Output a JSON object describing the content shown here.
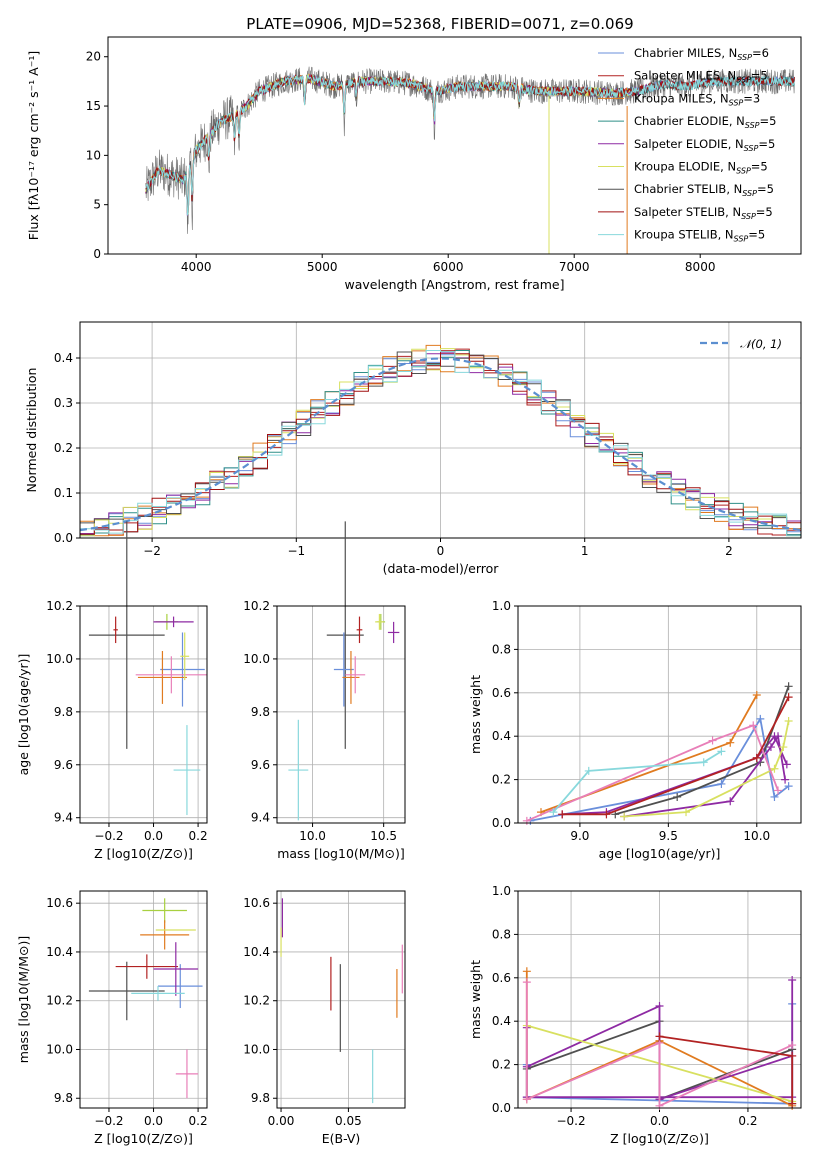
{
  "figure_title": "PLATE=0906, MJD=52368, FIBERID=0071, z=0.069",
  "chart_data": [
    {
      "type": "line",
      "id": "spectrum",
      "title": "PLATE=0906, MJD=52368, FIBERID=0071, z=0.069",
      "xlabel": "wavelength [Angstrom, rest frame]",
      "ylabel": "Flux [f_λ 10^-17 erg cm^-2 s^-1 A^-1]",
      "xlim": [
        3300,
        8800
      ],
      "ylim": [
        0,
        22
      ],
      "xticks": [
        4000,
        5000,
        6000,
        7000,
        8000
      ],
      "yticks": [
        0,
        5,
        10,
        15,
        20
      ],
      "grid": false,
      "legend_position": "top-right",
      "continuum_x": [
        3600,
        3700,
        3800,
        3900,
        4000,
        4100,
        4200,
        4300,
        4400,
        4500,
        4700,
        4900,
        5100,
        5300,
        5500,
        5700,
        5900,
        6100,
        6300,
        6500,
        6700,
        6900,
        7100,
        7300,
        7500,
        7700,
        7900,
        8100,
        8300,
        8500,
        8700
      ],
      "continuum_y": [
        6.5,
        8.5,
        8.0,
        7.5,
        10.5,
        12.0,
        13.5,
        14.0,
        15.0,
        16.5,
        17.5,
        17.8,
        17.0,
        17.5,
        17.5,
        17.3,
        16.5,
        17.0,
        17.0,
        17.0,
        16.5,
        16.5,
        16.5,
        16.3,
        16.5,
        17.2,
        17.0,
        17.5,
        17.5,
        17.5,
        17.5
      ],
      "series": [
        {
          "name": "Chabrier MILES",
          "nssp": "6"
        },
        {
          "name": "Salpeter MILES",
          "nssp": "5"
        },
        {
          "name": "Kroupa MILES",
          "nssp": "3"
        },
        {
          "name": "Chabrier ELODIE",
          "nssp": "5"
        },
        {
          "name": "Salpeter ELODIE",
          "nssp": "5"
        },
        {
          "name": "Kroupa ELODIE",
          "nssp": "5"
        },
        {
          "name": "Chabrier STELIB",
          "nssp": "5"
        },
        {
          "name": "Salpeter STELIB",
          "nssp": "5"
        },
        {
          "name": "Kroupa STELIB",
          "nssp": "5"
        }
      ]
    },
    {
      "type": "line",
      "id": "residuals",
      "xlabel": "(data-model)/error",
      "ylabel": "Normed distribution",
      "xlim": [
        -2.5,
        2.5
      ],
      "ylim": [
        0,
        0.48
      ],
      "xticks": [
        -2,
        -1,
        0,
        1,
        2
      ],
      "yticks": [
        0.0,
        0.1,
        0.2,
        0.3,
        0.4
      ],
      "grid": true,
      "legend_position": "top-right",
      "legend_label": "N(0,1)",
      "reference_curve": "gaussian N(0,1)"
    },
    {
      "type": "scatter",
      "id": "age_vs_z",
      "xlabel": "Z [log10(Z/Z⊙)]",
      "ylabel": "age [log10(age/yr)]",
      "xlim": [
        -0.33,
        0.24
      ],
      "ylim": [
        9.38,
        10.2
      ],
      "xticks": [
        -0.2,
        0.0,
        0.2
      ],
      "yticks": [
        9.4,
        9.6,
        9.8,
        10.0,
        10.2
      ],
      "grid": true,
      "points": [
        {
          "x": -0.12,
          "y": 10.09,
          "xerr": 0.17,
          "yerr": 0.43
        },
        {
          "x": -0.17,
          "y": 10.11,
          "xerr": 0.01,
          "yerr": 0.05
        },
        {
          "x": 0.06,
          "y": 10.14,
          "xerr": 0.05,
          "yerr": 0.03
        },
        {
          "x": 0.13,
          "y": 9.96,
          "xerr": 0.1,
          "yerr": 0.14
        },
        {
          "x": 0.09,
          "y": 10.14,
          "xerr": 0.09,
          "yerr": 0.02
        },
        {
          "x": 0.04,
          "y": 9.93,
          "xerr": 0.11,
          "yerr": 0.1
        },
        {
          "x": 0.08,
          "y": 9.94,
          "xerr": 0.16,
          "yerr": 0.07
        },
        {
          "x": 0.15,
          "y": 9.58,
          "xerr": 0.06,
          "yerr": 0.17
        },
        {
          "x": 0.14,
          "y": 10.01,
          "xerr": 0.02,
          "yerr": 0.09
        }
      ]
    },
    {
      "type": "scatter",
      "id": "age_vs_mass",
      "xlabel": "mass [log10(M/M⊙)]",
      "ylabel": "",
      "xlim": [
        9.75,
        10.65
      ],
      "ylim": [
        9.38,
        10.2
      ],
      "xticks": [
        10.0,
        10.5
      ],
      "yticks": [
        9.4,
        9.6,
        9.8,
        10.0,
        10.2
      ],
      "grid": true,
      "points": [
        {
          "x": 10.23,
          "y": 10.09,
          "xerr": 0.13,
          "yerr": 0.43
        },
        {
          "x": 10.33,
          "y": 10.11,
          "xerr": 0.02,
          "yerr": 0.05
        },
        {
          "x": 10.48,
          "y": 10.14,
          "xerr": 0.03,
          "yerr": 0.03
        },
        {
          "x": 10.22,
          "y": 9.96,
          "xerr": 0.07,
          "yerr": 0.14
        },
        {
          "x": 10.57,
          "y": 10.1,
          "xerr": 0.04,
          "yerr": 0.04
        },
        {
          "x": 10.27,
          "y": 9.93,
          "xerr": 0.06,
          "yerr": 0.1
        },
        {
          "x": 10.3,
          "y": 9.94,
          "xerr": 0.07,
          "yerr": 0.07
        },
        {
          "x": 9.9,
          "y": 9.58,
          "xerr": 0.07,
          "yerr": 0.19
        },
        {
          "x": 10.47,
          "y": 10.14,
          "xerr": 0.03,
          "yerr": 0.03
        }
      ]
    },
    {
      "type": "line",
      "id": "weight_vs_age",
      "xlabel": "age [log10(age/yr)]",
      "ylabel": "mass weight",
      "xlim": [
        8.65,
        10.25
      ],
      "ylim": [
        0,
        1.0
      ],
      "xticks": [
        9.0,
        9.5,
        10.0
      ],
      "yticks": [
        0.0,
        0.2,
        0.4,
        0.6,
        0.8,
        1.0
      ],
      "grid": true,
      "series": [
        {
          "x": [
            8.72,
            9.8,
            10.02,
            10.1,
            10.18
          ],
          "y": [
            0.01,
            0.18,
            0.48,
            0.12,
            0.17
          ]
        },
        {
          "x": [
            8.9,
            9.15,
            10.0,
            10.1,
            10.17
          ],
          "y": [
            0.04,
            0.05,
            0.3,
            0.4,
            0.27
          ]
        },
        {
          "x": [
            8.78,
            9.85,
            10.0
          ],
          "y": [
            0.05,
            0.37,
            0.59
          ]
        },
        {
          "x": [
            9.2,
            9.55,
            10.02,
            10.18
          ],
          "y": [
            0.04,
            0.12,
            0.28,
            0.63
          ]
        },
        {
          "x": [
            9.25,
            9.85,
            10.08,
            10.12,
            10.16
          ],
          "y": [
            0.03,
            0.1,
            0.35,
            0.4,
            0.2
          ]
        },
        {
          "x": [
            9.25,
            9.6,
            10.1,
            10.15,
            10.18
          ],
          "y": [
            0.03,
            0.05,
            0.25,
            0.35,
            0.47
          ]
        },
        {
          "x": [
            8.7,
            9.75,
            9.98,
            10.12
          ],
          "y": [
            0.01,
            0.38,
            0.45,
            0.15
          ]
        },
        {
          "x": [
            8.9,
            9.15,
            10.0,
            10.18
          ],
          "y": [
            0.04,
            0.04,
            0.3,
            0.58
          ]
        },
        {
          "x": [
            8.85,
            9.05,
            9.7,
            9.8
          ],
          "y": [
            0.05,
            0.24,
            0.28,
            0.33
          ]
        }
      ]
    },
    {
      "type": "scatter",
      "id": "mass_vs_z",
      "xlabel": "Z [log10(Z/Z⊙)]",
      "ylabel": "mass [log10(M/M⊙)]",
      "xlim": [
        -0.33,
        0.24
      ],
      "ylim": [
        9.76,
        10.65
      ],
      "xticks": [
        -0.2,
        0.0,
        0.2
      ],
      "yticks": [
        9.8,
        10.0,
        10.2,
        10.4,
        10.6
      ],
      "grid": true,
      "points": [
        {
          "x": -0.12,
          "y": 10.24,
          "xerr": 0.17,
          "yerr": 0.12
        },
        {
          "x": -0.03,
          "y": 10.34,
          "xerr": 0.14,
          "yerr": 0.05
        },
        {
          "x": 0.05,
          "y": 10.57,
          "xerr": 0.1,
          "yerr": 0.05
        },
        {
          "x": 0.12,
          "y": 10.26,
          "xerr": 0.1,
          "yerr": 0.09
        },
        {
          "x": 0.1,
          "y": 10.33,
          "xerr": 0.1,
          "yerr": 0.11
        },
        {
          "x": 0.05,
          "y": 10.47,
          "xerr": 0.11,
          "yerr": 0.06
        },
        {
          "x": 0.15,
          "y": 9.9,
          "xerr": 0.05,
          "yerr": 0.1
        },
        {
          "x": 0.02,
          "y": 10.23,
          "xerr": 0.12,
          "yerr": 0.03
        },
        {
          "x": 0.1,
          "y": 10.49,
          "xerr": 0.09,
          "yerr": 0.0
        }
      ]
    },
    {
      "type": "scatter",
      "id": "mass_vs_ebv",
      "xlabel": "E(B-V)",
      "ylabel": "",
      "xlim": [
        -0.003,
        0.092
      ],
      "ylim": [
        9.76,
        10.65
      ],
      "xticks": [
        0.0,
        0.05
      ],
      "yticks": [
        9.8,
        10.0,
        10.2,
        10.4,
        10.6
      ],
      "grid": true,
      "points": [
        {
          "x": 0.001,
          "y": 10.54,
          "yerr": 0.08
        },
        {
          "x": 0.0,
          "y": 10.44,
          "yerr": 0.06
        },
        {
          "x": 0.037,
          "y": 10.27,
          "yerr": 0.11
        },
        {
          "x": 0.044,
          "y": 10.17,
          "yerr": 0.18
        },
        {
          "x": 0.068,
          "y": 9.89,
          "yerr": 0.11
        },
        {
          "x": 0.086,
          "y": 10.23,
          "yerr": 0.1
        },
        {
          "x": 0.09,
          "y": 10.33,
          "yerr": 0.1
        }
      ]
    },
    {
      "type": "line",
      "id": "weight_vs_z",
      "xlabel": "Z [log10(Z/Z⊙)]",
      "ylabel": "mass weight",
      "xlim": [
        -0.32,
        0.32
      ],
      "ylim": [
        0,
        1.0
      ],
      "xticks": [
        -0.2,
        0.0,
        0.2
      ],
      "yticks": [
        0.0,
        0.2,
        0.4,
        0.6,
        0.8,
        1.0
      ],
      "grid": true,
      "series": [
        {
          "x": [
            -0.3,
            -0.3,
            0.3,
            0.3
          ],
          "y": [
            0.2,
            0.05,
            0.02,
            0.48
          ]
        },
        {
          "x": [
            -0.3,
            -0.3,
            0.3,
            0.3
          ],
          "y": [
            0.37,
            0.05,
            0.05,
            0.59
          ]
        },
        {
          "x": [
            -0.3,
            -0.3,
            0.0,
            0.3
          ],
          "y": [
            0.63,
            0.04,
            0.31,
            0.01
          ]
        },
        {
          "x": [
            -0.3,
            0.0,
            0.0,
            0.3
          ],
          "y": [
            0.18,
            0.4,
            0.04,
            0.27
          ]
        },
        {
          "x": [
            -0.3,
            0.0,
            0.0,
            0.3
          ],
          "y": [
            0.19,
            0.47,
            0.04,
            0.24
          ]
        },
        {
          "x": [
            -0.3,
            0.3,
            0.3
          ],
          "y": [
            0.38,
            0.03,
            0.02
          ]
        },
        {
          "x": [
            -0.3,
            -0.3,
            0.0,
            0.0,
            0.3
          ],
          "y": [
            0.58,
            0.04,
            0.3,
            0.01,
            0.29
          ]
        },
        {
          "x": [
            0.0,
            0.3,
            0.3
          ],
          "y": [
            0.33,
            0.24,
            0.02
          ]
        }
      ]
    }
  ],
  "colors": {
    "series": [
      "#6a8fdb",
      "#b22222",
      "#e07b20",
      "#2f8f88",
      "#8e2aa3",
      "#d8e060",
      "#505050",
      "#a01010",
      "#88d8dc"
    ],
    "spectrum_data": "#6e6e6e",
    "normal_curve": "#5b8fd0",
    "pink": "#e87fb8",
    "lime": "#a8d040"
  }
}
